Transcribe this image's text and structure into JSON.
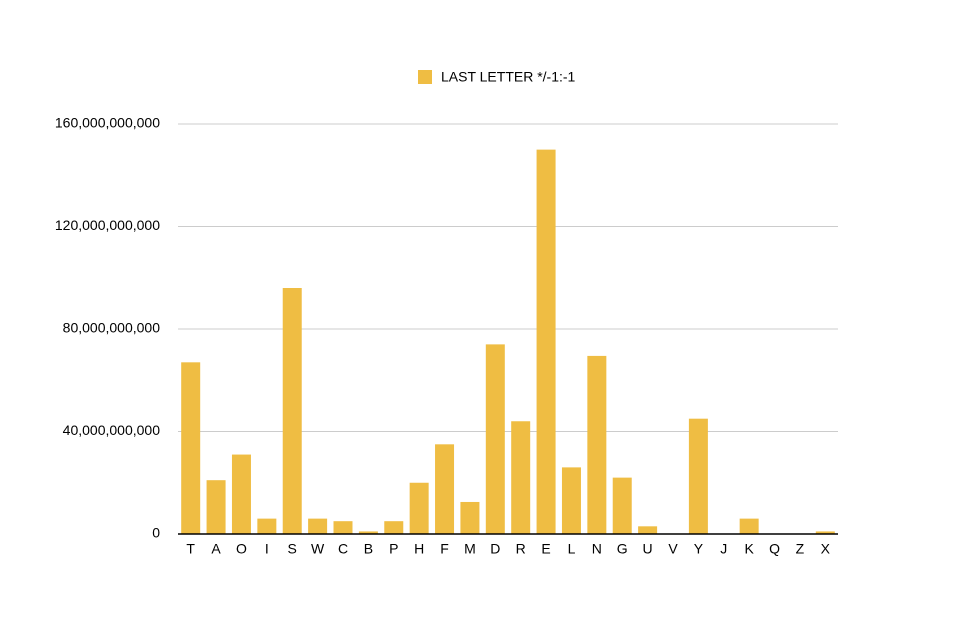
{
  "chart_data": {
    "type": "bar",
    "categories": [
      "T",
      "A",
      "O",
      "I",
      "S",
      "W",
      "C",
      "B",
      "P",
      "H",
      "F",
      "M",
      "D",
      "R",
      "E",
      "L",
      "N",
      "G",
      "U",
      "V",
      "Y",
      "J",
      "K",
      "Q",
      "Z",
      "X"
    ],
    "series": [
      {
        "name": "LAST LETTER */-1:-1",
        "color": "#efbd43",
        "values": [
          67000000000,
          21000000000,
          31000000000,
          6000000000,
          96000000000,
          6000000000,
          5000000000,
          1000000000,
          5000000000,
          20000000000,
          35000000000,
          12500000000,
          74000000000,
          44000000000,
          150000000000,
          26000000000,
          69500000000,
          22000000000,
          3000000000,
          200000000,
          45000000000,
          100000000,
          6000000000,
          100000000,
          100000000,
          1000000000
        ]
      }
    ],
    "ylim": [
      0,
      160000000000
    ],
    "yticks": [
      0,
      {
        "value": 40000000000,
        "label": "40,000,000,000"
      },
      {
        "value": 80000000000,
        "label": "80,000,000,000"
      },
      {
        "value": 120000000000,
        "label": "120,000,000,000"
      },
      {
        "value": 160000000000,
        "label": "160,000,000,000"
      }
    ],
    "grid": true,
    "legend": "top"
  }
}
